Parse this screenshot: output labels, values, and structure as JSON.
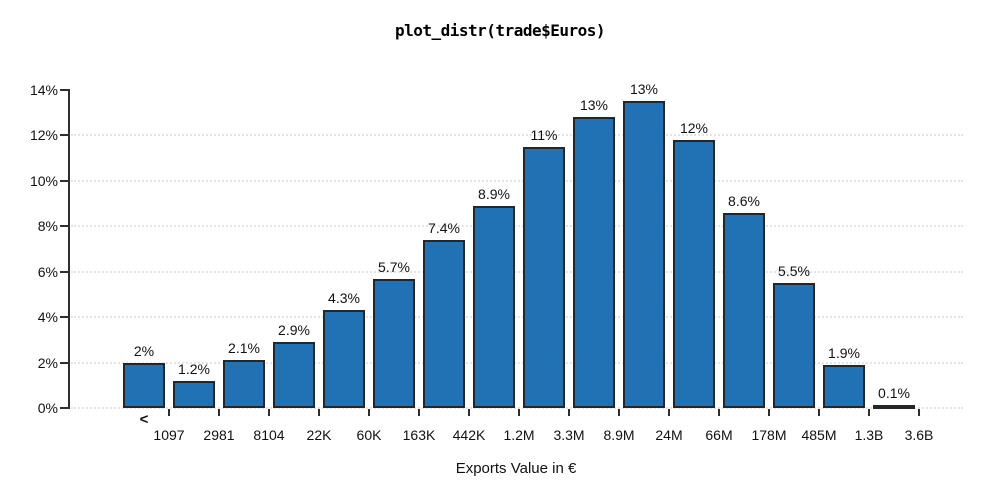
{
  "title": "plot_distr(trade$Euros)",
  "chart_data": {
    "type": "bar",
    "title": "plot_distr(trade$Euros)",
    "xlabel": "Exports Value in €",
    "ylabel": "",
    "ylim": [
      0,
      14
    ],
    "y_tick_values": [
      0,
      2,
      4,
      6,
      8,
      10,
      12,
      14
    ],
    "y_tick_labels": [
      "0%",
      "2%",
      "4%",
      "6%",
      "8%",
      "10%",
      "12%",
      "14%"
    ],
    "gridline_levels": [
      0,
      2,
      4,
      6,
      8,
      10,
      12
    ],
    "grid_style": "dotted-horizontal",
    "legend": "none",
    "first_bin_marker": "<",
    "x_tick_labels": [
      "1097",
      "2981",
      "8104",
      "22K",
      "60K",
      "163K",
      "442K",
      "1.2M",
      "3.3M",
      "8.9M",
      "24M",
      "66M",
      "178M",
      "485M",
      "1.3B",
      "3.6B"
    ],
    "bar_labels": [
      "2%",
      "1.2%",
      "2.1%",
      "2.9%",
      "4.3%",
      "5.7%",
      "7.4%",
      "8.9%",
      "11%",
      "13%",
      "13%",
      "12%",
      "8.6%",
      "5.5%",
      "1.9%",
      "0.1%"
    ],
    "values": [
      2.0,
      1.2,
      2.1,
      2.9,
      4.3,
      5.7,
      7.4,
      8.9,
      11.5,
      12.8,
      13.5,
      11.8,
      8.6,
      5.5,
      1.9,
      0.15
    ],
    "bar_fill_color": "#2171b5",
    "bar_border_color": "#262626",
    "gridline_color": "#c9c9c9",
    "axis_color": "#2e2e2e"
  }
}
